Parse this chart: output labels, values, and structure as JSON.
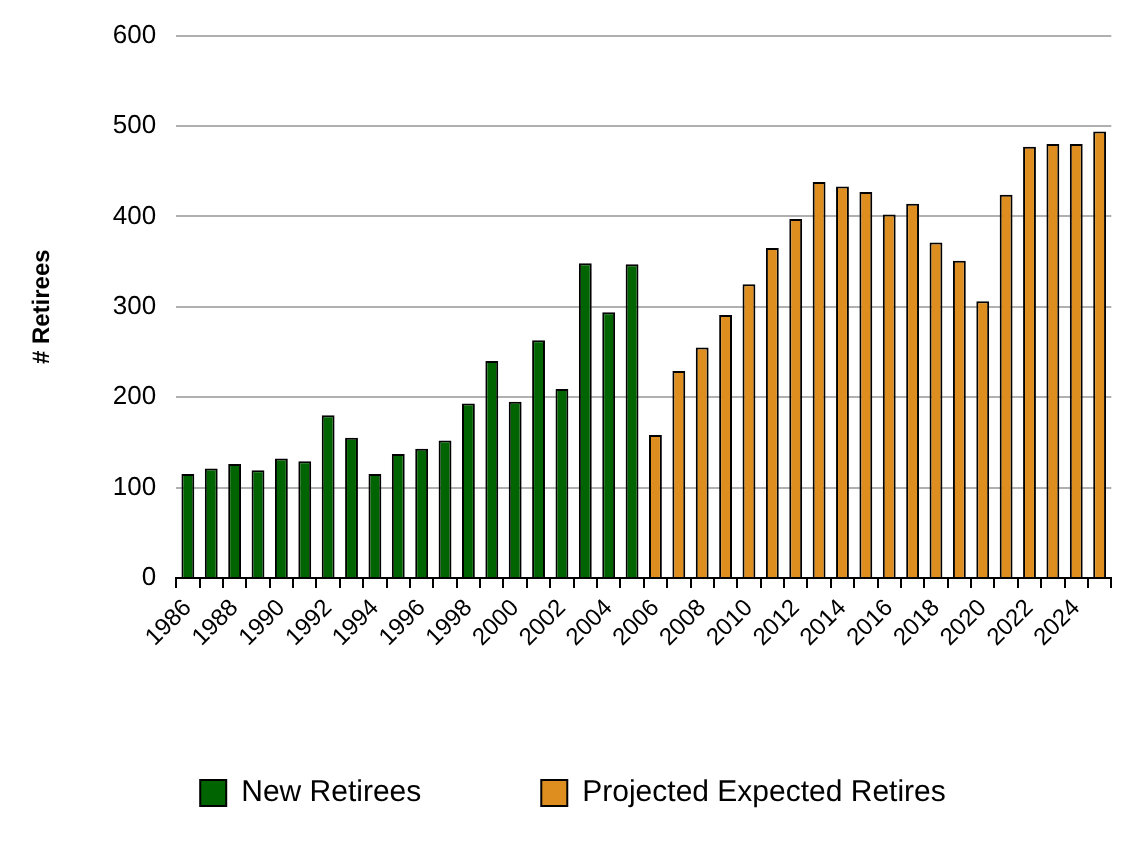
{
  "chart_data": {
    "type": "bar",
    "ylabel": "# Retirees",
    "categories": [
      "1986",
      null,
      "1988",
      null,
      "1990",
      null,
      "1992",
      null,
      "1994",
      null,
      "1996",
      null,
      "1998",
      null,
      "2000",
      null,
      "2002",
      null,
      "2004",
      null,
      "2006",
      null,
      "2008",
      null,
      "2010",
      null,
      "2012",
      null,
      "2014",
      null,
      "2016",
      null,
      "2018",
      null,
      "2020",
      null,
      "2022",
      null,
      "2024",
      null
    ],
    "series": [
      {
        "name": "New Retirees",
        "color": "#006400",
        "values": [
          115,
          121,
          126,
          119,
          132,
          129,
          180,
          155,
          115,
          137,
          143,
          152,
          193,
          240,
          195,
          263,
          209,
          348,
          294,
          347,
          null,
          null,
          null,
          null,
          null,
          null,
          null,
          null,
          null,
          null,
          null,
          null,
          null,
          null,
          null,
          null,
          null,
          null,
          null,
          null
        ]
      },
      {
        "name": "Projected Expected Retires",
        "color": "#dd8e1e",
        "values": [
          null,
          null,
          null,
          null,
          null,
          null,
          null,
          null,
          null,
          null,
          null,
          null,
          null,
          null,
          null,
          null,
          null,
          null,
          null,
          null,
          158,
          229,
          255,
          291,
          325,
          365,
          397,
          438,
          433,
          427,
          402,
          414,
          371,
          351,
          306,
          424,
          477,
          480,
          480,
          494
        ]
      }
    ],
    "ylim": [
      0,
      600
    ],
    "yticks": [
      0,
      100,
      200,
      300,
      400,
      500,
      600
    ],
    "grid": "y",
    "legend": "bottom"
  }
}
